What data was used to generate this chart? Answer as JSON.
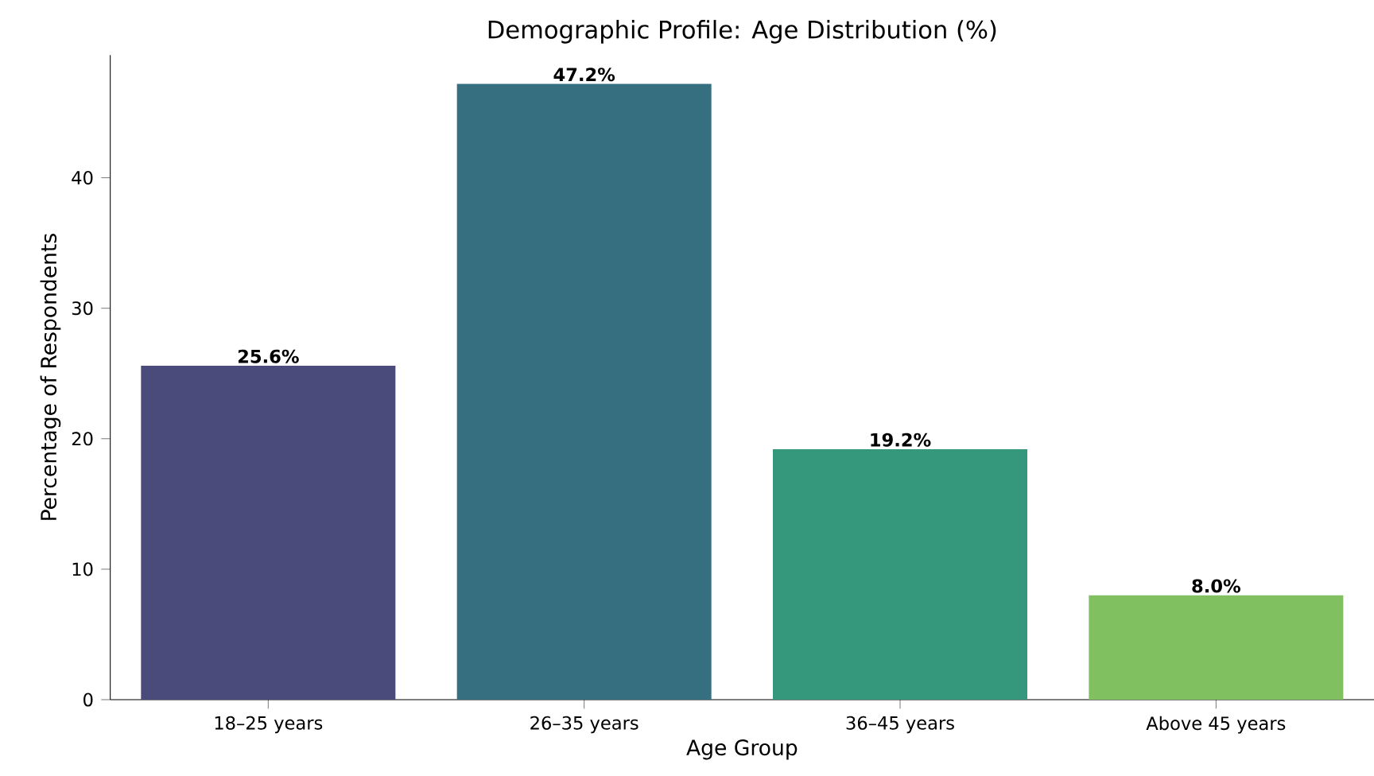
{
  "chart_data": {
    "type": "bar",
    "title": "Demographic Profile: Age Distribution (%)",
    "xlabel": "Age Group",
    "ylabel": "Percentage of Respondents",
    "categories": [
      "18–25 years",
      "26–35 years",
      "36–45 years",
      "Above 45 years"
    ],
    "values": [
      25.6,
      47.2,
      19.2,
      8.0
    ],
    "value_labels": [
      "25.6%",
      "47.2%",
      "19.2%",
      "8.0%"
    ],
    "colors": [
      "#4a4a7b",
      "#367080",
      "#35977b",
      "#80c060"
    ],
    "ylim": [
      0,
      49.4
    ],
    "yticks": [
      0,
      10,
      20,
      30,
      40
    ],
    "grid": false
  }
}
